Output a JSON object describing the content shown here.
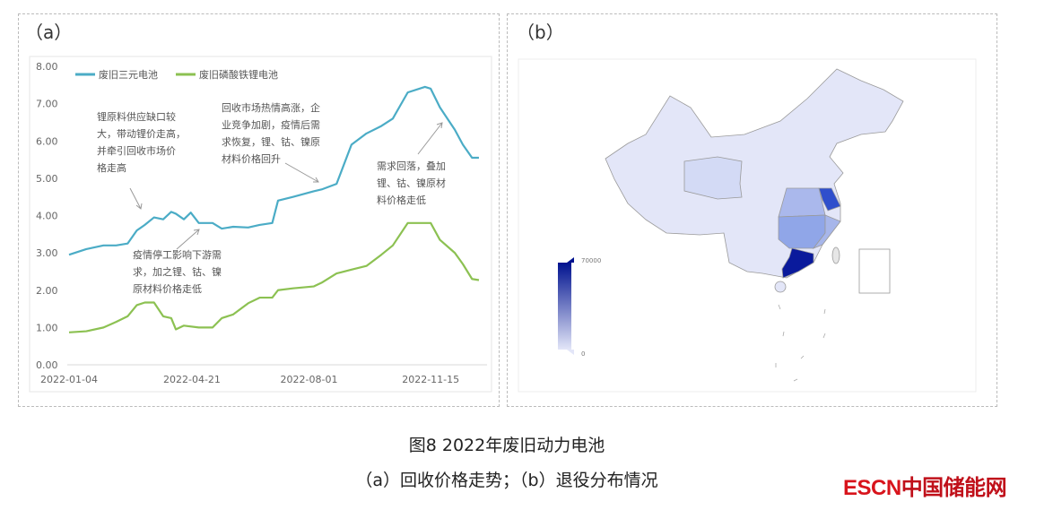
{
  "panels": {
    "a_label": "（a）",
    "b_label": "（b）"
  },
  "caption": {
    "line1": "图8 2022年废旧动力电池",
    "line2": "（a）回收价格走势；（b）退役分布情况"
  },
  "logo": {
    "latin": "ESCN",
    "cn": "中国储能网"
  },
  "chart_data": [
    {
      "type": "line",
      "ylim": [
        0,
        8
      ],
      "yticks": [
        "0.00",
        "1.00",
        "2.00",
        "3.00",
        "4.00",
        "5.00",
        "6.00",
        "7.00",
        "8.00"
      ],
      "xticks": [
        "2022-01-04",
        "2022-04-21",
        "2022-08-01",
        "2022-11-15"
      ],
      "legend_position": "top-left",
      "grid": false,
      "series": [
        {
          "name": "废旧三元电池",
          "color": "#4bacc6",
          "points": [
            [
              "2022-01-04",
              2.95
            ],
            [
              "2022-01-19",
              3.1
            ],
            [
              "2022-02-03",
              3.2
            ],
            [
              "2022-02-14",
              3.2
            ],
            [
              "2022-02-24",
              3.25
            ],
            [
              "2022-03-04",
              3.6
            ],
            [
              "2022-03-11",
              3.75
            ],
            [
              "2022-03-19",
              3.95
            ],
            [
              "2022-03-27",
              3.9
            ],
            [
              "2022-04-03",
              4.1
            ],
            [
              "2022-04-07",
              4.05
            ],
            [
              "2022-04-14",
              3.9
            ],
            [
              "2022-04-20",
              4.08
            ],
            [
              "2022-04-27",
              3.8
            ],
            [
              "2022-05-09",
              3.8
            ],
            [
              "2022-05-17",
              3.65
            ],
            [
              "2022-05-27",
              3.7
            ],
            [
              "2022-06-09",
              3.68
            ],
            [
              "2022-06-19",
              3.75
            ],
            [
              "2022-06-30",
              3.8
            ],
            [
              "2022-07-05",
              4.4
            ],
            [
              "2022-07-18",
              4.5
            ],
            [
              "2022-08-05",
              4.65
            ],
            [
              "2022-08-12",
              4.7
            ],
            [
              "2022-08-25",
              4.85
            ],
            [
              "2022-09-07",
              5.9
            ],
            [
              "2022-09-20",
              6.2
            ],
            [
              "2022-10-03",
              6.4
            ],
            [
              "2022-10-13",
              6.6
            ],
            [
              "2022-10-26",
              7.3
            ],
            [
              "2022-11-10",
              7.45
            ],
            [
              "2022-11-15",
              7.4
            ],
            [
              "2022-11-23",
              6.9
            ],
            [
              "2022-12-06",
              6.3
            ],
            [
              "2022-12-13",
              5.9
            ],
            [
              "2022-12-21",
              5.55
            ],
            [
              "2022-12-27",
              5.55
            ]
          ]
        },
        {
          "name": "废旧磷酸铁锂电池",
          "color": "#8cc152",
          "points": [
            [
              "2022-01-04",
              0.87
            ],
            [
              "2022-01-19",
              0.9
            ],
            [
              "2022-02-03",
              1.0
            ],
            [
              "2022-02-14",
              1.15
            ],
            [
              "2022-02-24",
              1.3
            ],
            [
              "2022-03-04",
              1.6
            ],
            [
              "2022-03-11",
              1.67
            ],
            [
              "2022-03-19",
              1.67
            ],
            [
              "2022-03-27",
              1.3
            ],
            [
              "2022-04-03",
              1.25
            ],
            [
              "2022-04-07",
              0.95
            ],
            [
              "2022-04-14",
              1.05
            ],
            [
              "2022-04-27",
              1.0
            ],
            [
              "2022-05-09",
              1.0
            ],
            [
              "2022-05-17",
              1.25
            ],
            [
              "2022-05-27",
              1.35
            ],
            [
              "2022-06-09",
              1.65
            ],
            [
              "2022-06-19",
              1.8
            ],
            [
              "2022-06-30",
              1.8
            ],
            [
              "2022-07-05",
              2.0
            ],
            [
              "2022-07-18",
              2.05
            ],
            [
              "2022-08-05",
              2.1
            ],
            [
              "2022-08-12",
              2.2
            ],
            [
              "2022-08-25",
              2.45
            ],
            [
              "2022-09-07",
              2.55
            ],
            [
              "2022-09-20",
              2.65
            ],
            [
              "2022-10-03",
              2.95
            ],
            [
              "2022-10-13",
              3.2
            ],
            [
              "2022-10-26",
              3.8
            ],
            [
              "2022-11-10",
              3.8
            ],
            [
              "2022-11-15",
              3.8
            ],
            [
              "2022-11-23",
              3.35
            ],
            [
              "2022-12-06",
              3.0
            ],
            [
              "2022-12-13",
              2.7
            ],
            [
              "2022-12-21",
              2.3
            ],
            [
              "2022-12-27",
              2.27
            ]
          ]
        }
      ],
      "annotations": [
        {
          "lines": [
            "锂原料供应缺口较",
            "大，带动锂价走高，",
            "并牵引回收市场价",
            "格走高"
          ]
        },
        {
          "lines": [
            "疫情停工影响下游需",
            "求，加之锂、钴、镍",
            "原材料价格走低"
          ]
        },
        {
          "lines": [
            "回收市场热情高涨，企",
            "业竞争加剧，疫情后需",
            "求恢复，锂、钴、镍原",
            "材料价格回升"
          ]
        },
        {
          "lines": [
            "需求回落，叠加",
            "锂、钴、镍原材",
            "料价格走低"
          ]
        }
      ]
    },
    {
      "type": "heatmap",
      "visual_map": {
        "min": 0,
        "max": 70000,
        "min_label": "0",
        "max_label": "70000",
        "color_low": "#e3e6f8",
        "color_high": "#00128f"
      },
      "region_colors": {
        "base": "#e3e6f8",
        "guangdong": "#0a1a9c",
        "jiangsu": "#2f4fcc",
        "central": "#90a6e8",
        "anhui-hubei": "#aab8ec",
        "zhejiang-fujian": "#a7b6ea",
        "qinghai": "#d3daf5"
      }
    }
  ]
}
